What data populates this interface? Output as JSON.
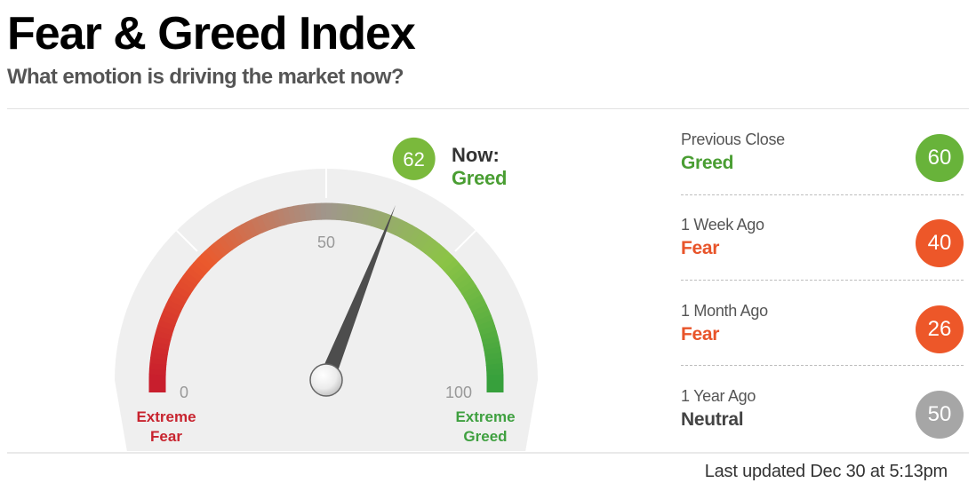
{
  "header": {
    "title": "Fear & Greed Index",
    "subtitle": "What emotion is driving the market now?"
  },
  "gauge": {
    "value": 62,
    "min": 0,
    "max": 100,
    "mid_label": "50",
    "min_label": "0",
    "max_label": "100",
    "left_label_line1": "Extreme",
    "left_label_line2": "Fear",
    "right_label_line1": "Extreme",
    "right_label_line2": "Greed",
    "now_label": "Now:",
    "now_value": "Greed",
    "needle_value": "62"
  },
  "history": [
    {
      "label": "Previous Close",
      "sentiment": "Greed",
      "value": "60",
      "sentiment_color": "#4a9e33",
      "circle_color": "#68b33a"
    },
    {
      "label": "1 Week Ago",
      "sentiment": "Fear",
      "value": "40",
      "sentiment_color": "#e8542a",
      "circle_color": "#ed5729"
    },
    {
      "label": "1 Month Ago",
      "sentiment": "Fear",
      "value": "26",
      "sentiment_color": "#e8542a",
      "circle_color": "#ed5729"
    },
    {
      "label": "1 Year Ago",
      "sentiment": "Neutral",
      "value": "50",
      "sentiment_color": "#444444",
      "circle_color": "#a6a6a6"
    }
  ],
  "footer": {
    "last_updated": "Last updated Dec 30 at 5:13pm"
  },
  "colors": {
    "greed": "#4a9e33",
    "fear": "#e8542a",
    "extreme_fear": "#c8242f",
    "extreme_greed": "#3fa040",
    "neutral": "#a6a6a6"
  }
}
